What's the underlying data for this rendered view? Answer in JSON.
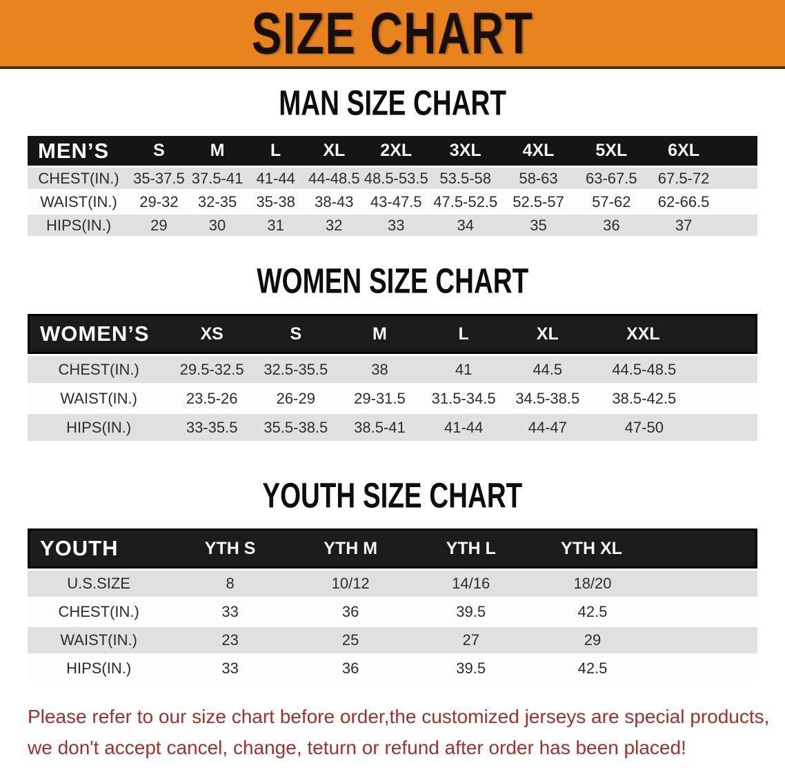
{
  "banner": {
    "title": "SIZE CHART",
    "bg_color": "#e8831d",
    "text_color": "#181008"
  },
  "sections": {
    "men": {
      "heading": "MAN SIZE CHART",
      "table": {
        "label": "MEN’S",
        "columns": [
          "S",
          "M",
          "L",
          "XL",
          "2XL",
          "3XL",
          "4XL",
          "5XL",
          "6XL"
        ],
        "rows": [
          {
            "label": "CHEST(IN.)",
            "values": [
              "35-37.5",
              "37.5-41",
              "41-44",
              "44-48.5",
              "48.5-53.5",
              "53.5-58",
              "58-63",
              "63-67.5",
              "67.5-72"
            ]
          },
          {
            "label": "WAIST(IN.)",
            "values": [
              "29-32",
              "32-35",
              "35-38",
              "38-43",
              "43-47.5",
              "47.5-52.5",
              "52.5-57",
              "57-62",
              "62-66.5"
            ]
          },
          {
            "label": "HIPS(IN.)",
            "values": [
              "29",
              "30",
              "31",
              "32",
              "33",
              "34",
              "35",
              "36",
              "37"
            ]
          }
        ]
      }
    },
    "women": {
      "heading": "WOMEN SIZE CHART",
      "table": {
        "label": "WOMEN’S",
        "columns": [
          "XS",
          "S",
          "M",
          "L",
          "XL",
          "XXL"
        ],
        "rows": [
          {
            "label": "CHEST(IN.)",
            "values": [
              "29.5-32.5",
              "32.5-35.5",
              "38",
              "41",
              "44.5",
              "44.5-48.5"
            ]
          },
          {
            "label": "WAIST(IN.)",
            "values": [
              "23.5-26",
              "26-29",
              "29-31.5",
              "31.5-34.5",
              "34.5-38.5",
              "38.5-42.5"
            ]
          },
          {
            "label": "HIPS(IN.)",
            "values": [
              "33-35.5",
              "35.5-38.5",
              "38.5-41",
              "41-44",
              "44-47",
              "47-50"
            ]
          }
        ]
      }
    },
    "youth": {
      "heading": "YOUTH SIZE CHART",
      "table": {
        "label": "YOUTH",
        "columns": [
          "YTH S",
          "YTH M",
          "YTH L",
          "YTH XL"
        ],
        "rows": [
          {
            "label": "U.S.SIZE",
            "values": [
              "8",
              "10/12",
              "14/16",
              "18/20"
            ]
          },
          {
            "label": "CHEST(IN.)",
            "values": [
              "33",
              "36",
              "39.5",
              "42.5"
            ]
          },
          {
            "label": "WAIST(IN.)",
            "values": [
              "23",
              "25",
              "27",
              "29"
            ]
          },
          {
            "label": "HIPS(IN.)",
            "values": [
              "33",
              "36",
              "39.5",
              "42.5"
            ]
          }
        ]
      }
    }
  },
  "disclaimer": {
    "line1": "Please refer to our size chart before order,the customized jerseys are special products,",
    "line2": "we don't accept cancel, change, teturn or refund after order has been placed!",
    "color": "#a5302a"
  },
  "style_colors": {
    "row_alt_bg": "#e1e1e1",
    "header_bg": "#141414",
    "boxed_header_bg": "#1b1b1b"
  }
}
